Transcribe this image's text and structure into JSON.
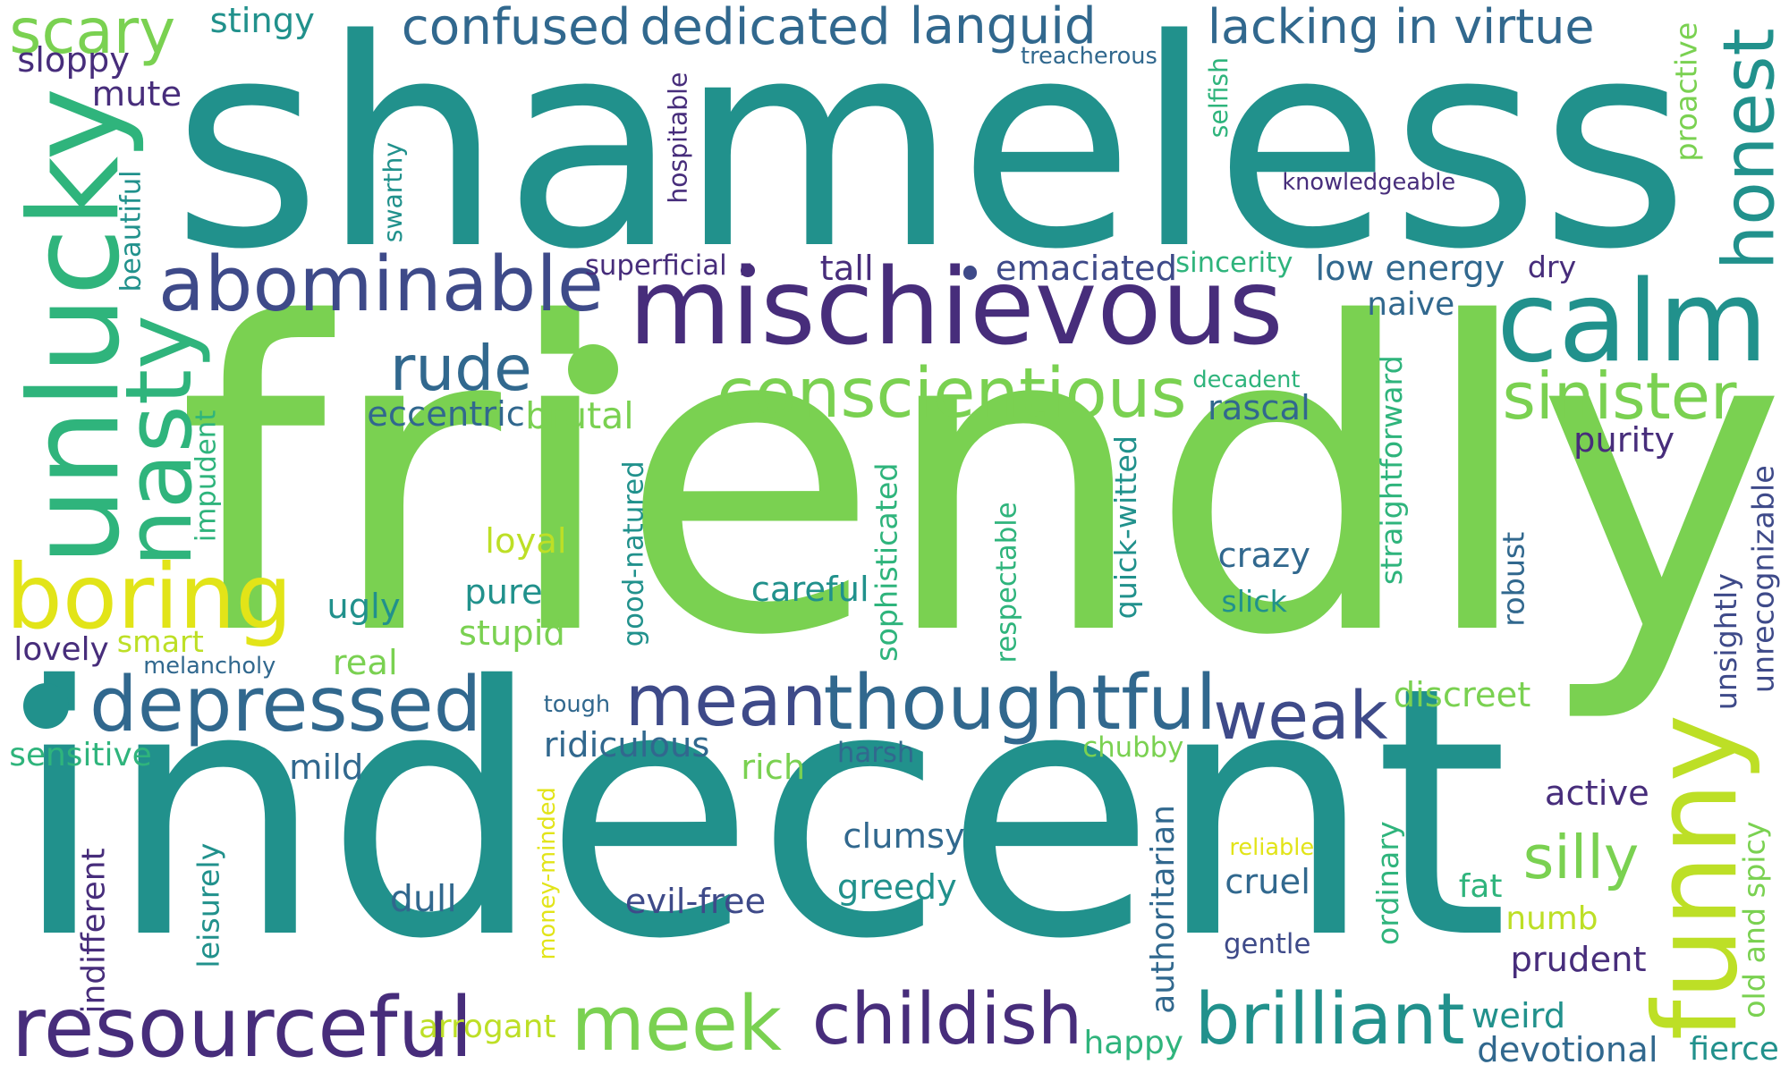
{
  "word_cloud": {
    "words": [
      {
        "text": "friendly",
        "color": "#7ad151",
        "rotated": false
      },
      {
        "text": "shameless",
        "color": "#21918c",
        "rotated": false
      },
      {
        "text": "indecent",
        "color": "#21918c",
        "rotated": false
      },
      {
        "text": "mischievous",
        "color": "#472d7b",
        "rotated": false
      },
      {
        "text": "unlucky",
        "color": "#2fb47c",
        "rotated": true
      },
      {
        "text": "calm",
        "color": "#21918c",
        "rotated": false
      },
      {
        "text": "abominable",
        "color": "#3e4a89",
        "rotated": false
      },
      {
        "text": "conscientious",
        "color": "#7ad151",
        "rotated": false
      },
      {
        "text": "nasty",
        "color": "#2fb47c",
        "rotated": true
      },
      {
        "text": "boring",
        "color": "#e2e418",
        "rotated": false
      },
      {
        "text": "depressed",
        "color": "#31688e",
        "rotated": false
      },
      {
        "text": "funny",
        "color": "#bddf26",
        "rotated": true
      },
      {
        "text": "thoughtful",
        "color": "#31688e",
        "rotated": false
      },
      {
        "text": "honest",
        "color": "#21918c",
        "rotated": true
      },
      {
        "text": "resourceful",
        "color": "#472d7b",
        "rotated": false
      },
      {
        "text": "brilliant",
        "color": "#21918c",
        "rotated": false
      },
      {
        "text": "meek",
        "color": "#7ad151",
        "rotated": false
      },
      {
        "text": "childish",
        "color": "#472d7b",
        "rotated": false
      },
      {
        "text": "sinister",
        "color": "#7ad151",
        "rotated": false
      },
      {
        "text": "mean",
        "color": "#3e4a89",
        "rotated": false
      },
      {
        "text": "weak",
        "color": "#3e4a89",
        "rotated": false
      },
      {
        "text": "rude",
        "color": "#31688e",
        "rotated": false
      },
      {
        "text": "scary",
        "color": "#7ad151",
        "rotated": false
      },
      {
        "text": "confused",
        "color": "#31688e",
        "rotated": false
      },
      {
        "text": "dedicated",
        "color": "#31688e",
        "rotated": false
      },
      {
        "text": "languid",
        "color": "#31688e",
        "rotated": false
      },
      {
        "text": "lacking in virtue",
        "color": "#31688e",
        "rotated": false
      },
      {
        "text": "silly",
        "color": "#7ad151",
        "rotated": false
      },
      {
        "text": "stingy",
        "color": "#21918c",
        "rotated": false
      },
      {
        "text": "sloppy",
        "color": "#472d7b",
        "rotated": false
      },
      {
        "text": "mute",
        "color": "#472d7b",
        "rotated": false
      },
      {
        "text": "treacherous",
        "color": "#31688e",
        "rotated": false
      },
      {
        "text": "hospitable",
        "color": "#472d7b",
        "rotated": true
      },
      {
        "text": "selfish",
        "color": "#2fb47c",
        "rotated": true
      },
      {
        "text": "proactive",
        "color": "#7ad151",
        "rotated": true
      },
      {
        "text": "knowledgeable",
        "color": "#472d7b",
        "rotated": false
      },
      {
        "text": "swarthy",
        "color": "#21918c",
        "rotated": true
      },
      {
        "text": "beautiful",
        "color": "#21918c",
        "rotated": true
      },
      {
        "text": "superficial",
        "color": "#472d7b",
        "rotated": false
      },
      {
        "text": "tall",
        "color": "#472d7b",
        "rotated": false
      },
      {
        "text": "emaciated",
        "color": "#3e4a89",
        "rotated": false
      },
      {
        "text": "sincerity",
        "color": "#2fb47c",
        "rotated": false
      },
      {
        "text": "low energy",
        "color": "#31688e",
        "rotated": false
      },
      {
        "text": "dry",
        "color": "#472d7b",
        "rotated": false
      },
      {
        "text": "naive",
        "color": "#31688e",
        "rotated": false
      },
      {
        "text": "decadent",
        "color": "#2fb47c",
        "rotated": false
      },
      {
        "text": "rascal",
        "color": "#31688e",
        "rotated": false
      },
      {
        "text": "purity",
        "color": "#472d7b",
        "rotated": false
      },
      {
        "text": "eccentric",
        "color": "#31688e",
        "rotated": false
      },
      {
        "text": "brutal",
        "color": "#7ad151",
        "rotated": false
      },
      {
        "text": "impudent",
        "color": "#2fb47c",
        "rotated": true
      },
      {
        "text": "good-natured",
        "color": "#21918c",
        "rotated": true
      },
      {
        "text": "sophisticated",
        "color": "#2fb47c",
        "rotated": true
      },
      {
        "text": "respectable",
        "color": "#2fb47c",
        "rotated": true
      },
      {
        "text": "quick-witted",
        "color": "#21918c",
        "rotated": true
      },
      {
        "text": "straightforward",
        "color": "#2fb47c",
        "rotated": true
      },
      {
        "text": "robust",
        "color": "#31688e",
        "rotated": true
      },
      {
        "text": "unsightly",
        "color": "#3e4a89",
        "rotated": true
      },
      {
        "text": "unrecognizable",
        "color": "#3e4a89",
        "rotated": true
      },
      {
        "text": "loyal",
        "color": "#bddf26",
        "rotated": false
      },
      {
        "text": "crazy",
        "color": "#31688e",
        "rotated": false
      },
      {
        "text": "pure",
        "color": "#21918c",
        "rotated": false
      },
      {
        "text": "careful",
        "color": "#21918c",
        "rotated": false
      },
      {
        "text": "ugly",
        "color": "#21918c",
        "rotated": false
      },
      {
        "text": "slick",
        "color": "#21918c",
        "rotated": false
      },
      {
        "text": "stupid",
        "color": "#7ad151",
        "rotated": false
      },
      {
        "text": "smart",
        "color": "#bddf26",
        "rotated": false
      },
      {
        "text": "lovely",
        "color": "#472d7b",
        "rotated": false
      },
      {
        "text": "melancholy",
        "color": "#31688e",
        "rotated": false
      },
      {
        "text": "real",
        "color": "#7ad151",
        "rotated": false
      },
      {
        "text": "tough",
        "color": "#31688e",
        "rotated": false
      },
      {
        "text": "discreet",
        "color": "#7ad151",
        "rotated": false
      },
      {
        "text": "sensitive",
        "color": "#2fb47c",
        "rotated": false
      },
      {
        "text": "mild",
        "color": "#31688e",
        "rotated": false
      },
      {
        "text": "ridiculous",
        "color": "#31688e",
        "rotated": false
      },
      {
        "text": "rich",
        "color": "#7ad151",
        "rotated": false
      },
      {
        "text": "harsh",
        "color": "#31688e",
        "rotated": false
      },
      {
        "text": "chubby",
        "color": "#7ad151",
        "rotated": false
      },
      {
        "text": "active",
        "color": "#472d7b",
        "rotated": false
      },
      {
        "text": "clumsy",
        "color": "#31688e",
        "rotated": false
      },
      {
        "text": "money-minded",
        "color": "#e2e418",
        "rotated": true
      },
      {
        "text": "authoritarian",
        "color": "#31688e",
        "rotated": true
      },
      {
        "text": "reliable",
        "color": "#e2e418",
        "rotated": false
      },
      {
        "text": "ordinary",
        "color": "#2fb47c",
        "rotated": true
      },
      {
        "text": "old and spicy",
        "color": "#7ad151",
        "rotated": true
      },
      {
        "text": "indifferent",
        "color": "#472d7b",
        "rotated": true
      },
      {
        "text": "leisurely",
        "color": "#21918c",
        "rotated": true
      },
      {
        "text": "dull",
        "color": "#31688e",
        "rotated": false
      },
      {
        "text": "evil-free",
        "color": "#3e4a89",
        "rotated": false
      },
      {
        "text": "greedy",
        "color": "#21918c",
        "rotated": false
      },
      {
        "text": "cruel",
        "color": "#31688e",
        "rotated": false
      },
      {
        "text": "fat",
        "color": "#2fb47c",
        "rotated": false
      },
      {
        "text": "numb",
        "color": "#bddf26",
        "rotated": false
      },
      {
        "text": "gentle",
        "color": "#3e4a89",
        "rotated": false
      },
      {
        "text": "prudent",
        "color": "#472d7b",
        "rotated": false
      },
      {
        "text": "arrogant",
        "color": "#bddf26",
        "rotated": false
      },
      {
        "text": "happy",
        "color": "#2fb47c",
        "rotated": false
      },
      {
        "text": "weird",
        "color": "#21918c",
        "rotated": false
      },
      {
        "text": "devotional",
        "color": "#31688e",
        "rotated": false
      },
      {
        "text": "fierce",
        "color": "#21918c",
        "rotated": false
      }
    ]
  }
}
